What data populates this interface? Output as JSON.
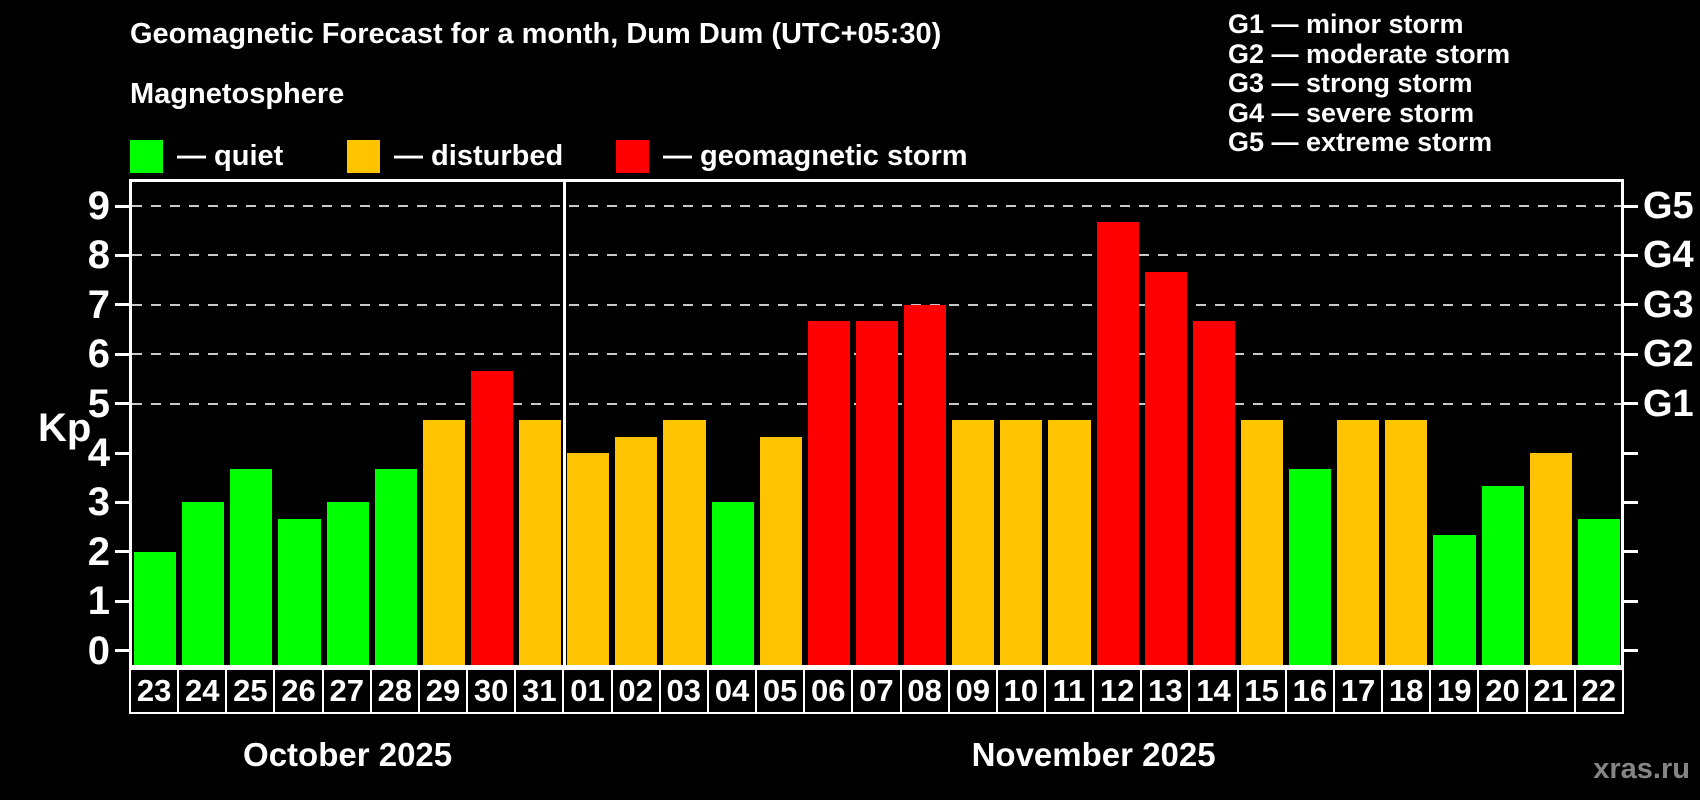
{
  "title": "Geomagnetic Forecast for a month, Dum Dum (UTC+05:30)",
  "subtitle": "Magnetosphere",
  "legend": {
    "items": [
      {
        "label": "— quiet",
        "status": "quiet"
      },
      {
        "label": "— disturbed",
        "status": "disturbed"
      },
      {
        "label": "— geomagnetic storm",
        "status": "storm"
      }
    ]
  },
  "g_scale_legend": [
    "G1 — minor storm",
    "G2 — moderate storm",
    "G3 — strong storm",
    "G4 — severe storm",
    "G5 — extreme storm"
  ],
  "axes": {
    "y_label": "Kp",
    "y_ticks": [
      0,
      1,
      2,
      3,
      4,
      5,
      6,
      7,
      8,
      9
    ],
    "right_labels": [
      {
        "label": "G1",
        "kp": 5
      },
      {
        "label": "G2",
        "kp": 6
      },
      {
        "label": "G3",
        "kp": 7
      },
      {
        "label": "G4",
        "kp": 8
      },
      {
        "label": "G5",
        "kp": 9
      }
    ]
  },
  "colors": {
    "quiet": "#00ff00",
    "disturbed": "#ffc300",
    "storm": "#ff0000",
    "background": "#000000",
    "text": "#ffffff",
    "grid": "#c9c9c9",
    "watermark": "#858585"
  },
  "watermark": "xras.ru",
  "chart_data": {
    "type": "bar",
    "title": "Geomagnetic Forecast for a month, Dum Dum (UTC+05:30)",
    "ylabel": "Kp",
    "ylim": [
      0,
      9.5
    ],
    "gridlines_kp": [
      5,
      6,
      7,
      8,
      9
    ],
    "legend_position": "top-left",
    "categories": [
      "23",
      "24",
      "25",
      "26",
      "27",
      "28",
      "29",
      "30",
      "31",
      "01",
      "02",
      "03",
      "04",
      "05",
      "06",
      "07",
      "08",
      "09",
      "10",
      "11",
      "12",
      "13",
      "14",
      "15",
      "16",
      "17",
      "18",
      "19",
      "20",
      "21",
      "22"
    ],
    "values": [
      2.0,
      3.0,
      3.67,
      2.67,
      3.0,
      3.67,
      4.67,
      5.67,
      4.67,
      4.0,
      4.33,
      4.67,
      3.0,
      4.33,
      6.67,
      6.67,
      7.0,
      4.67,
      4.67,
      4.67,
      8.67,
      7.67,
      6.67,
      4.67,
      3.67,
      4.67,
      4.67,
      2.33,
      3.33,
      4.0,
      2.67
    ],
    "statuses": [
      "quiet",
      "quiet",
      "quiet",
      "quiet",
      "quiet",
      "quiet",
      "disturbed",
      "storm",
      "disturbed",
      "disturbed",
      "disturbed",
      "disturbed",
      "quiet",
      "disturbed",
      "storm",
      "storm",
      "storm",
      "disturbed",
      "disturbed",
      "disturbed",
      "storm",
      "storm",
      "storm",
      "disturbed",
      "quiet",
      "disturbed",
      "disturbed",
      "quiet",
      "quiet",
      "disturbed",
      "quiet"
    ],
    "months": [
      {
        "label": "October 2025",
        "days": 9
      },
      {
        "label": "November 2025",
        "days": 22
      }
    ]
  }
}
